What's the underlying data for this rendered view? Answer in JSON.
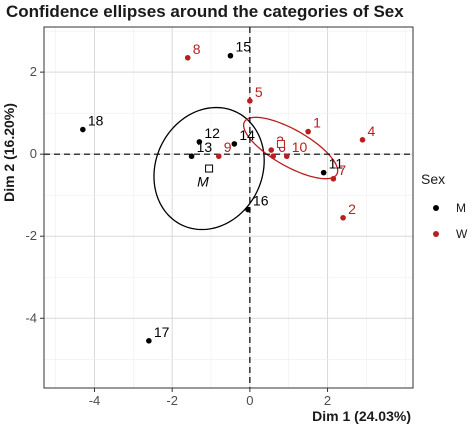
{
  "chart_data": {
    "type": "scatter",
    "title": "Confidence ellipses around the categories of Sex",
    "xlabel": "Dim 1 (24.03%)",
    "ylabel": "Dim 2 (16.20%)",
    "xlim": [
      -5.3,
      4.2
    ],
    "ylim": [
      -5.7,
      3.1
    ],
    "x_ticks": [
      -4,
      -2,
      0,
      2
    ],
    "y_ticks": [
      -4,
      -2,
      0,
      2
    ],
    "x_tick_labels": [
      "-4",
      "-2",
      "0",
      "2"
    ],
    "y_tick_labels": [
      "-4",
      "-2",
      "0",
      "2"
    ],
    "grid": true,
    "reference_lines": [
      {
        "axis": "x",
        "value": 0,
        "style": "dashed"
      },
      {
        "axis": "y",
        "value": 0,
        "style": "dashed"
      }
    ],
    "legend": {
      "title": "Sex",
      "position": "right",
      "entries": [
        {
          "key": "M",
          "label": "M",
          "color": "#000000"
        },
        {
          "key": "W",
          "label": "W",
          "color": "#bb1e1e"
        }
      ]
    },
    "colors": {
      "M": "#000000",
      "W": "#bb1e1e"
    },
    "points": [
      {
        "label": "1",
        "group": "W",
        "x": 1.5,
        "y": 0.55
      },
      {
        "label": "2",
        "group": "W",
        "x": 2.4,
        "y": -1.55
      },
      {
        "label": "3",
        "group": "W",
        "x": 0.55,
        "y": 0.1
      },
      {
        "label": "4",
        "group": "W",
        "x": 2.9,
        "y": 0.35
      },
      {
        "label": "5",
        "group": "W",
        "x": 0.0,
        "y": 1.3
      },
      {
        "label": "6",
        "group": "W",
        "x": 0.6,
        "y": -0.05
      },
      {
        "label": "7",
        "group": "W",
        "x": 2.15,
        "y": -0.6
      },
      {
        "label": "8",
        "group": "W",
        "x": -1.6,
        "y": 2.35
      },
      {
        "label": "9",
        "group": "W",
        "x": -0.8,
        "y": -0.05
      },
      {
        "label": "10",
        "group": "W",
        "x": 0.95,
        "y": -0.05
      },
      {
        "label": "11",
        "group": "M",
        "x": 1.9,
        "y": -0.45
      },
      {
        "label": "12",
        "group": "M",
        "x": -1.3,
        "y": 0.3
      },
      {
        "label": "13",
        "group": "M",
        "x": -1.5,
        "y": -0.05
      },
      {
        "label": "14",
        "group": "M",
        "x": -0.4,
        "y": 0.25
      },
      {
        "label": "15",
        "group": "M",
        "x": -0.5,
        "y": 2.4
      },
      {
        "label": "16",
        "group": "M",
        "x": -0.05,
        "y": -1.35
      },
      {
        "label": "17",
        "group": "M",
        "x": -2.6,
        "y": -4.55
      },
      {
        "label": "18",
        "group": "M",
        "x": -4.3,
        "y": 0.6
      }
    ],
    "category_centers": [
      {
        "label": "M",
        "group": "M",
        "x": -1.05,
        "y": -0.35
      },
      {
        "label": "W",
        "group": "W",
        "x": 0.8,
        "y": 0.25
      }
    ],
    "ellipses": [
      {
        "group": "M",
        "cx": -1.05,
        "cy": -0.35,
        "rx": 1.35,
        "ry": 1.55,
        "angle_deg": -35
      },
      {
        "group": "W",
        "cx": 1.05,
        "cy": 0.15,
        "rx": 1.35,
        "ry": 0.45,
        "angle_deg": -28
      }
    ]
  }
}
